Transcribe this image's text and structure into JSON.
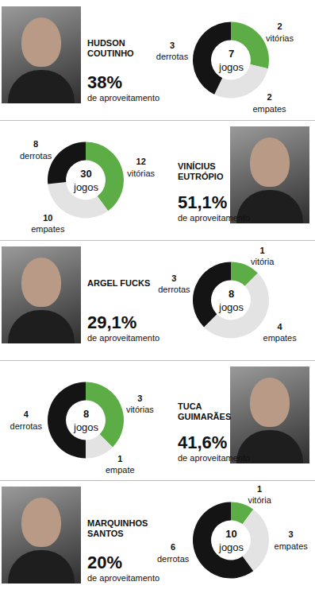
{
  "chart_data": [
    {
      "type": "pie",
      "title": "HUDSON COUTINHO",
      "subtitle": "de aproveitamento",
      "rate": {
        "value": 38,
        "label": "38%"
      },
      "total": {
        "value": 7,
        "label": "jogos"
      },
      "categories": [
        "vitórias",
        "empates",
        "derrotas"
      ],
      "values": [
        2,
        2,
        3
      ],
      "colors": [
        "#5cad46",
        "#e3e3e3",
        "#141414"
      ],
      "data_labels": true
    },
    {
      "type": "pie",
      "title": "VINÍCIUS EUTRÓPIO",
      "subtitle": "de aproveitamento",
      "rate": {
        "value": 51.1,
        "label": "51,1%"
      },
      "total": {
        "value": 30,
        "label": "jogos"
      },
      "categories": [
        "vitórias",
        "empates",
        "derrotas"
      ],
      "values": [
        12,
        10,
        8
      ],
      "colors": [
        "#5cad46",
        "#e3e3e3",
        "#141414"
      ],
      "data_labels": true
    },
    {
      "type": "pie",
      "title": "ARGEL FUCKS",
      "subtitle": "de aproveitamento",
      "rate": {
        "value": 29.1,
        "label": "29,1%"
      },
      "total": {
        "value": 8,
        "label": "jogos"
      },
      "categories": [
        "vitória",
        "empates",
        "derrotas"
      ],
      "values": [
        1,
        4,
        3
      ],
      "colors": [
        "#5cad46",
        "#e3e3e3",
        "#141414"
      ],
      "data_labels": true
    },
    {
      "type": "pie",
      "title": "TUCA GUIMARÃES",
      "subtitle": "de aproveitamento",
      "rate": {
        "value": 41.6,
        "label": "41,6%"
      },
      "total": {
        "value": 8,
        "label": "jogos"
      },
      "categories": [
        "vitórias",
        "empate",
        "derrotas"
      ],
      "values": [
        3,
        1,
        4
      ],
      "colors": [
        "#5cad46",
        "#e3e3e3",
        "#141414"
      ],
      "data_labels": true
    },
    {
      "type": "pie",
      "title": "MARQUINHOS SANTOS",
      "subtitle": "de aproveitamento",
      "rate": {
        "value": 20,
        "label": "20%"
      },
      "total": {
        "value": 10,
        "label": "jogos"
      },
      "categories": [
        "vitória",
        "empates",
        "derrotas"
      ],
      "values": [
        1,
        3,
        6
      ],
      "colors": [
        "#5cad46",
        "#e3e3e3",
        "#141414"
      ],
      "data_labels": true
    }
  ]
}
